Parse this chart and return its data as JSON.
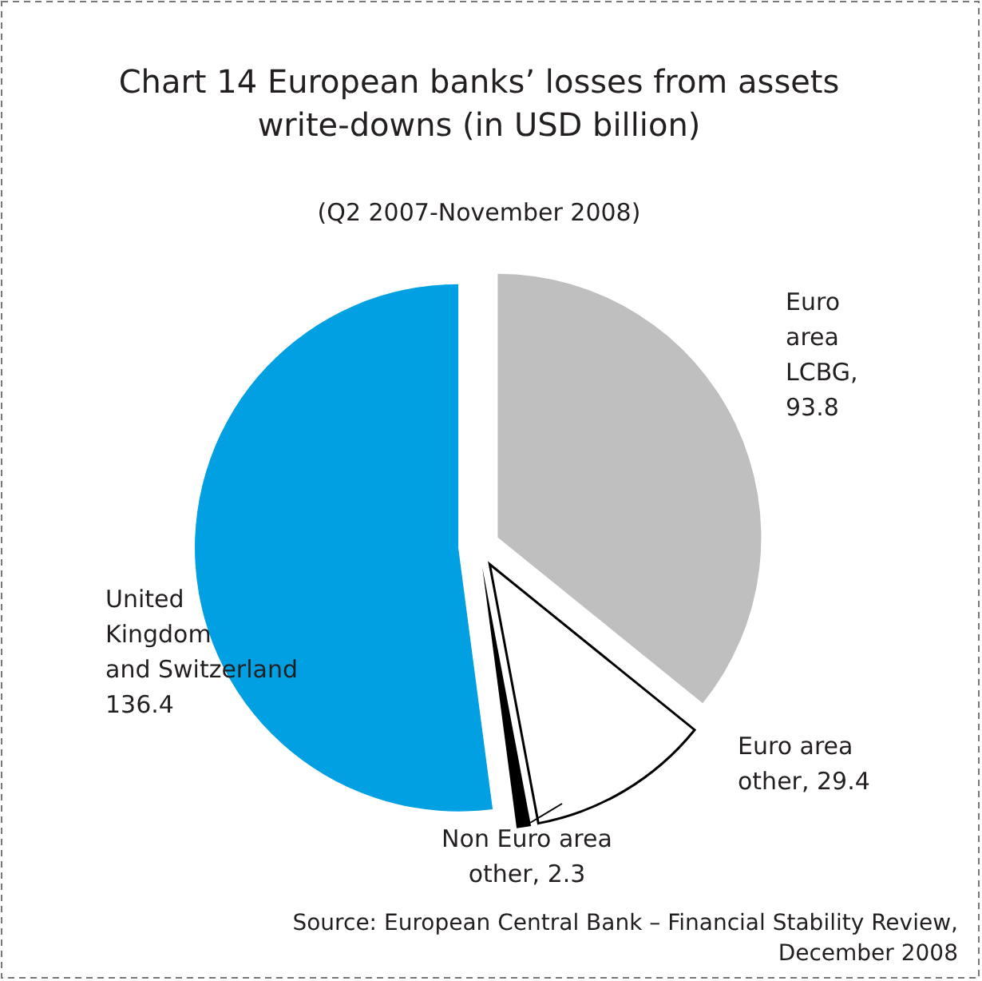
{
  "chart_data": {
    "type": "pie",
    "title": "Chart 14 European banks’ losses from assets\nwrite-downs (in USD billion)",
    "subtitle": "(Q2 2007-November 2008)",
    "categories": [
      "Euro\narea\nLCBG",
      "Euro area\nother",
      "Non Euro area\nother",
      "United\nKingdom\nand Switzerland"
    ],
    "values": [
      93.8,
      29.4,
      2.3,
      136.4
    ],
    "colors": [
      "#bfbfbf",
      "#ffffff",
      "#000000",
      "#00a0e3"
    ],
    "value_labels": [
      ",\n93.8",
      ", 29.4",
      ", 2.3",
      "136.4"
    ],
    "annotations": [
      "Source: European Central Bank – Financial Stability Review,\nDecember 2008"
    ]
  }
}
